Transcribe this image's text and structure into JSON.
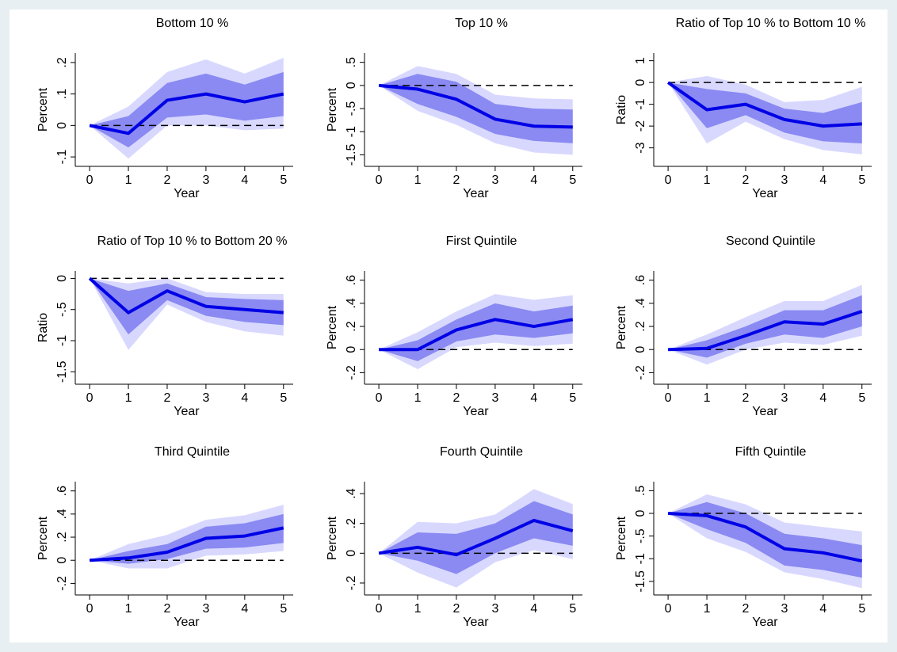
{
  "chart_data": [
    {
      "type": "line",
      "title": "Bottom 10 %",
      "x_label": "Year",
      "y_label": "Percent",
      "x": [
        0,
        1,
        2,
        3,
        4,
        5
      ],
      "xlim": [
        -0.37,
        5.25
      ],
      "xticks": [
        0,
        1,
        2,
        3,
        4,
        5
      ],
      "ylim": [
        -0.13,
        0.23
      ],
      "yticks": [
        {
          "value": -0.1,
          "label": "-.1"
        },
        0,
        {
          "value": 0.1,
          "label": ".1"
        },
        {
          "value": 0.2,
          "label": ".2"
        }
      ],
      "yline": 0,
      "color": "#0000e6",
      "values": [
        0,
        -0.025,
        0.08,
        0.1,
        0.075,
        0.1
      ],
      "bands": [
        {
          "color": "#d8d8ff",
          "lower": [
            0,
            -0.105,
            0,
            0,
            -0.015,
            -0.01
          ],
          "upper": [
            0,
            0.06,
            0.17,
            0.21,
            0.165,
            0.215
          ]
        },
        {
          "color": "#8a8af2",
          "lower": [
            0,
            -0.07,
            0.025,
            0.035,
            0.015,
            0.03
          ],
          "upper": [
            0,
            0.03,
            0.135,
            0.165,
            0.13,
            0.17
          ]
        }
      ]
    },
    {
      "type": "line",
      "title": "Top 10 %",
      "x_label": "Year",
      "y_label": "Percent",
      "x": [
        0,
        1,
        2,
        3,
        4,
        5
      ],
      "xlim": [
        -0.37,
        5.25
      ],
      "xticks": [
        0,
        1,
        2,
        3,
        4,
        5
      ],
      "ylim": [
        -1.75,
        0.7
      ],
      "yticks": [
        -1.5,
        -1,
        {
          "value": -0.5,
          "label": "-.5"
        },
        0,
        {
          "value": 0.5,
          "label": ".5"
        }
      ],
      "yline": 0,
      "color": "#0000e6",
      "values": [
        0,
        -0.08,
        -0.3,
        -0.73,
        -0.88,
        -0.9
      ],
      "bands": [
        {
          "color": "#d8d8ff",
          "lower": [
            0,
            -0.55,
            -0.85,
            -1.25,
            -1.45,
            -1.5
          ],
          "upper": [
            0,
            0.42,
            0.25,
            -0.2,
            -0.28,
            -0.3
          ]
        },
        {
          "color": "#8a8af2",
          "lower": [
            0,
            -0.4,
            -0.68,
            -1.05,
            -1.2,
            -1.25
          ],
          "upper": [
            0,
            0.25,
            0.08,
            -0.4,
            -0.5,
            -0.52
          ]
        }
      ]
    },
    {
      "type": "line",
      "title": "Ratio of Top 10 % to Bottom 10 %",
      "x_label": "Year",
      "y_label": "Ratio",
      "x": [
        0,
        1,
        2,
        3,
        4,
        5
      ],
      "xlim": [
        -0.37,
        5.25
      ],
      "xticks": [
        0,
        1,
        2,
        3,
        4,
        5
      ],
      "ylim": [
        -3.85,
        1.35
      ],
      "yticks": [
        -3,
        -2,
        -1,
        0,
        1
      ],
      "yline": 0,
      "color": "#0000e6",
      "values": [
        0,
        -1.25,
        -1.0,
        -1.7,
        -2.0,
        -1.9
      ],
      "bands": [
        {
          "color": "#d8d8ff",
          "lower": [
            0,
            -2.8,
            -1.8,
            -2.6,
            -3.1,
            -3.3
          ],
          "upper": [
            0,
            0.3,
            -0.1,
            -0.9,
            -0.8,
            -0.2
          ]
        },
        {
          "color": "#8a8af2",
          "lower": [
            0,
            -2.1,
            -1.5,
            -2.3,
            -2.7,
            -2.8
          ],
          "upper": [
            0,
            -0.3,
            -0.5,
            -1.2,
            -1.4,
            -0.9
          ]
        }
      ]
    },
    {
      "type": "line",
      "title": "Ratio of Top 10 % to Bottom 20 %",
      "x_label": "Year",
      "y_label": "Ratio",
      "x": [
        0,
        1,
        2,
        3,
        4,
        5
      ],
      "xlim": [
        -0.37,
        5.25
      ],
      "xticks": [
        0,
        1,
        2,
        3,
        4,
        5
      ],
      "ylim": [
        -1.7,
        0.12
      ],
      "yticks": [
        -1.5,
        -1,
        {
          "value": -0.5,
          "label": "-.5"
        },
        0
      ],
      "yline": 0,
      "color": "#0000e6",
      "values": [
        0,
        -0.55,
        -0.2,
        -0.45,
        -0.5,
        -0.55
      ],
      "bands": [
        {
          "color": "#d8d8ff",
          "lower": [
            0,
            -1.15,
            -0.42,
            -0.7,
            -0.85,
            -0.92
          ],
          "upper": [
            0,
            -0.08,
            0,
            -0.22,
            -0.25,
            -0.25
          ]
        },
        {
          "color": "#8a8af2",
          "lower": [
            0,
            -0.9,
            -0.35,
            -0.6,
            -0.7,
            -0.75
          ],
          "upper": [
            0,
            -0.2,
            -0.08,
            -0.3,
            -0.33,
            -0.35
          ]
        }
      ]
    },
    {
      "type": "line",
      "title": "First Quintile",
      "x_label": "Year",
      "y_label": "Percent",
      "x": [
        0,
        1,
        2,
        3,
        4,
        5
      ],
      "xlim": [
        -0.37,
        5.25
      ],
      "xticks": [
        0,
        1,
        2,
        3,
        4,
        5
      ],
      "ylim": [
        -0.3,
        0.68
      ],
      "yticks": [
        {
          "value": -0.2,
          "label": "-.2"
        },
        0,
        {
          "value": 0.2,
          "label": ".2"
        },
        {
          "value": 0.4,
          "label": ".4"
        },
        {
          "value": 0.6,
          "label": ".6"
        }
      ],
      "yline": 0,
      "color": "#0000e6",
      "values": [
        0,
        0,
        0.17,
        0.26,
        0.2,
        0.26
      ],
      "bands": [
        {
          "color": "#d8d8ff",
          "lower": [
            0,
            -0.17,
            0.02,
            0.06,
            0.03,
            0.05
          ],
          "upper": [
            0,
            0.15,
            0.33,
            0.48,
            0.43,
            0.47
          ]
        },
        {
          "color": "#8a8af2",
          "lower": [
            0,
            -0.1,
            0.07,
            0.13,
            0.1,
            0.14
          ],
          "upper": [
            0,
            0.08,
            0.26,
            0.4,
            0.33,
            0.38
          ]
        }
      ]
    },
    {
      "type": "line",
      "title": "Second Quintile",
      "x_label": "Year",
      "y_label": "Percent",
      "x": [
        0,
        1,
        2,
        3,
        4,
        5
      ],
      "xlim": [
        -0.37,
        5.25
      ],
      "xticks": [
        0,
        1,
        2,
        3,
        4,
        5
      ],
      "ylim": [
        -0.3,
        0.68
      ],
      "yticks": [
        {
          "value": -0.2,
          "label": "-.2"
        },
        0,
        {
          "value": 0.2,
          "label": ".2"
        },
        {
          "value": 0.4,
          "label": ".4"
        },
        {
          "value": 0.6,
          "label": ".6"
        }
      ],
      "yline": 0,
      "color": "#0000e6",
      "values": [
        0,
        0.01,
        0.12,
        0.24,
        0.22,
        0.33
      ],
      "bands": [
        {
          "color": "#d8d8ff",
          "lower": [
            0,
            -0.13,
            0,
            0.06,
            0.04,
            0.12
          ],
          "upper": [
            0,
            0.13,
            0.28,
            0.42,
            0.42,
            0.56
          ]
        },
        {
          "color": "#8a8af2",
          "lower": [
            0,
            -0.07,
            0.05,
            0.13,
            0.1,
            0.2
          ],
          "upper": [
            0,
            0.08,
            0.2,
            0.34,
            0.34,
            0.47
          ]
        }
      ]
    },
    {
      "type": "line",
      "title": "Third Quintile",
      "x_label": "Year",
      "y_label": "Percent",
      "x": [
        0,
        1,
        2,
        3,
        4,
        5
      ],
      "xlim": [
        -0.37,
        5.25
      ],
      "xticks": [
        0,
        1,
        2,
        3,
        4,
        5
      ],
      "ylim": [
        -0.3,
        0.68
      ],
      "yticks": [
        {
          "value": -0.2,
          "label": "-.2"
        },
        0,
        {
          "value": 0.2,
          "label": ".2"
        },
        {
          "value": 0.4,
          "label": ".4"
        },
        {
          "value": 0.6,
          "label": ".6"
        }
      ],
      "yline": 0,
      "color": "#0000e6",
      "values": [
        0,
        0.02,
        0.07,
        0.19,
        0.21,
        0.28
      ],
      "bands": [
        {
          "color": "#d8d8ff",
          "lower": [
            0,
            -0.07,
            -0.07,
            0.04,
            0.05,
            0.08
          ],
          "upper": [
            0,
            0.14,
            0.22,
            0.35,
            0.39,
            0.48
          ]
        },
        {
          "color": "#8a8af2",
          "lower": [
            0,
            -0.03,
            0.01,
            0.1,
            0.11,
            0.15
          ],
          "upper": [
            0,
            0.08,
            0.14,
            0.29,
            0.32,
            0.4
          ]
        }
      ]
    },
    {
      "type": "line",
      "title": "Fourth Quintile",
      "x_label": "Year",
      "y_label": "Percent",
      "x": [
        0,
        1,
        2,
        3,
        4,
        5
      ],
      "xlim": [
        -0.37,
        5.25
      ],
      "xticks": [
        0,
        1,
        2,
        3,
        4,
        5
      ],
      "ylim": [
        -0.28,
        0.48
      ],
      "yticks": [
        {
          "value": -0.2,
          "label": "-.2"
        },
        0,
        {
          "value": 0.2,
          "label": ".2"
        },
        {
          "value": 0.4,
          "label": ".4"
        }
      ],
      "yline": 0,
      "color": "#0000e6",
      "values": [
        0,
        0.04,
        -0.01,
        0.1,
        0.22,
        0.15
      ],
      "bands": [
        {
          "color": "#d8d8ff",
          "lower": [
            0,
            -0.13,
            -0.23,
            -0.06,
            0.02,
            -0.04
          ],
          "upper": [
            0,
            0.21,
            0.2,
            0.26,
            0.43,
            0.33
          ]
        },
        {
          "color": "#8a8af2",
          "lower": [
            0,
            -0.05,
            -0.14,
            0,
            0.1,
            0.05
          ],
          "upper": [
            0,
            0.14,
            0.13,
            0.2,
            0.35,
            0.26
          ]
        }
      ]
    },
    {
      "type": "line",
      "title": "Fifth Quintile",
      "x_label": "Year",
      "y_label": "Percent",
      "x": [
        0,
        1,
        2,
        3,
        4,
        5
      ],
      "xlim": [
        -0.37,
        5.25
      ],
      "xticks": [
        0,
        1,
        2,
        3,
        4,
        5
      ],
      "ylim": [
        -1.8,
        0.7
      ],
      "yticks": [
        -1.5,
        -1,
        {
          "value": -0.5,
          "label": "-.5"
        },
        0,
        {
          "value": 0.5,
          "label": ".5"
        }
      ],
      "yline": 0,
      "color": "#0000e6",
      "values": [
        0,
        -0.05,
        -0.3,
        -0.78,
        -0.87,
        -1.05
      ],
      "bands": [
        {
          "color": "#d8d8ff",
          "lower": [
            0,
            -0.55,
            -0.85,
            -1.3,
            -1.45,
            -1.65
          ],
          "upper": [
            0,
            0.42,
            0.2,
            -0.2,
            -0.3,
            -0.4
          ]
        },
        {
          "color": "#8a8af2",
          "lower": [
            0,
            -0.35,
            -0.65,
            -1.15,
            -1.25,
            -1.42
          ],
          "upper": [
            0,
            0.25,
            0,
            -0.45,
            -0.55,
            -0.7
          ]
        }
      ]
    }
  ]
}
